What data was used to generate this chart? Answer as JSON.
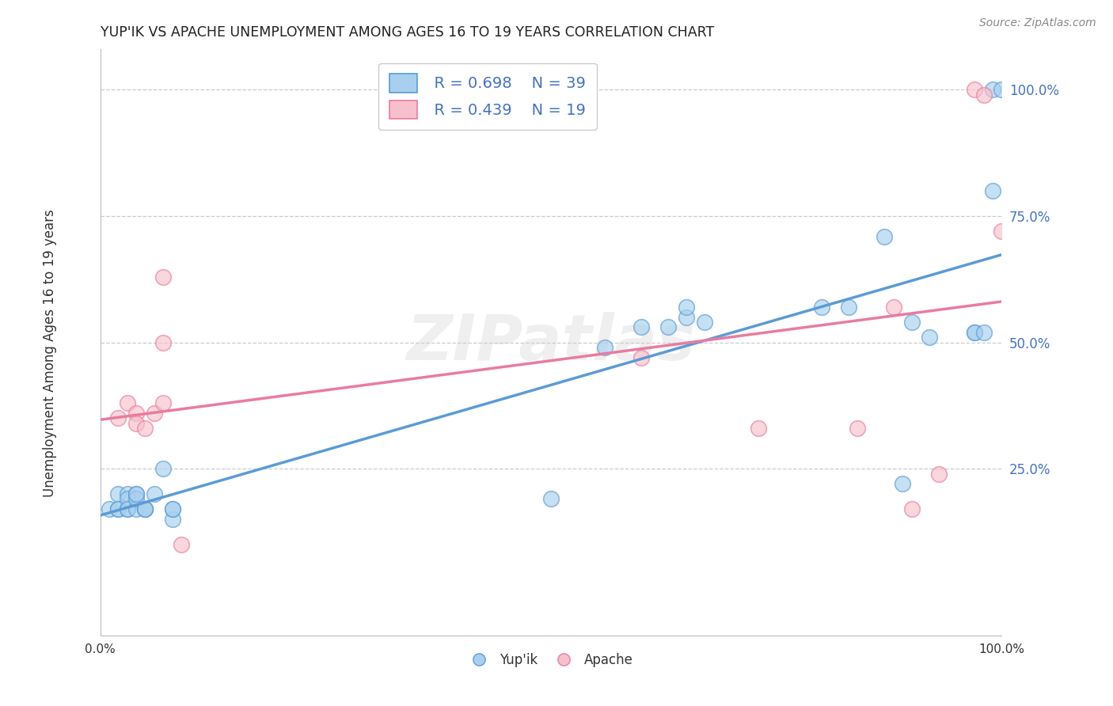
{
  "title": "YUP'IK VS APACHE UNEMPLOYMENT AMONG AGES 16 TO 19 YEARS CORRELATION CHART",
  "source": "Source: ZipAtlas.com",
  "xlabel": "",
  "ylabel": "Unemployment Among Ages 16 to 19 years",
  "xlim": [
    0,
    1
  ],
  "ylim": [
    -0.08,
    1.08
  ],
  "xtick_positions": [
    0,
    1
  ],
  "xtick_labels": [
    "0.0%",
    "100.0%"
  ],
  "ytick_labels": [
    "25.0%",
    "50.0%",
    "75.0%",
    "100.0%"
  ],
  "ytick_values": [
    0.25,
    0.5,
    0.75,
    1.0
  ],
  "legend_r_yupik": "R = 0.698",
  "legend_n_yupik": "N = 39",
  "legend_r_apache": "R = 0.439",
  "legend_n_apache": "N = 19",
  "color_yupik": "#A8D0EE",
  "color_apache": "#F8C0CC",
  "line_color_yupik": "#5B9BD5",
  "line_color_apache": "#E87CA0",
  "legend_text_color": "#4472C4",
  "watermark": "ZIPatlas",
  "background_color": "#ffffff",
  "grid_color": "#cccccc",
  "yupik_x": [
    0.01,
    0.02,
    0.02,
    0.02,
    0.03,
    0.03,
    0.03,
    0.03,
    0.04,
    0.04,
    0.04,
    0.04,
    0.05,
    0.05,
    0.05,
    0.06,
    0.07,
    0.08,
    0.08,
    0.08,
    0.5,
    0.56,
    0.6,
    0.63,
    0.65,
    0.65,
    0.67,
    0.8,
    0.83,
    0.87,
    0.89,
    0.9,
    0.92,
    0.97,
    0.97,
    0.98,
    0.99,
    0.99,
    1.0
  ],
  "yupik_y": [
    0.17,
    0.17,
    0.2,
    0.17,
    0.17,
    0.2,
    0.19,
    0.17,
    0.17,
    0.2,
    0.19,
    0.2,
    0.17,
    0.17,
    0.17,
    0.2,
    0.25,
    0.15,
    0.17,
    0.17,
    0.19,
    0.49,
    0.53,
    0.53,
    0.55,
    0.57,
    0.54,
    0.57,
    0.57,
    0.71,
    0.22,
    0.54,
    0.51,
    0.52,
    0.52,
    0.52,
    0.8,
    1.0,
    1.0
  ],
  "apache_x": [
    0.02,
    0.03,
    0.04,
    0.04,
    0.05,
    0.06,
    0.07,
    0.07,
    0.07,
    0.09,
    0.6,
    0.73,
    0.84,
    0.88,
    0.9,
    0.93,
    0.97,
    0.98,
    1.0
  ],
  "apache_y": [
    0.35,
    0.38,
    0.36,
    0.34,
    0.33,
    0.36,
    0.63,
    0.5,
    0.38,
    0.1,
    0.47,
    0.33,
    0.33,
    0.57,
    0.17,
    0.24,
    1.0,
    0.99,
    0.72
  ]
}
